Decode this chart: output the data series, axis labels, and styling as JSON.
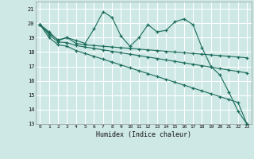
{
  "xlabel": "Humidex (Indice chaleur)",
  "background_color": "#cde8e5",
  "grid_color": "#ffffff",
  "line_color": "#1a6b5a",
  "x_values": [
    0,
    1,
    2,
    3,
    4,
    5,
    6,
    7,
    8,
    9,
    10,
    11,
    12,
    13,
    14,
    15,
    16,
    17,
    18,
    19,
    20,
    21,
    22,
    23
  ],
  "series1": [
    19.9,
    19.4,
    18.8,
    19.0,
    18.8,
    18.6,
    19.6,
    20.8,
    20.4,
    19.1,
    18.4,
    19.0,
    19.9,
    19.4,
    19.5,
    20.1,
    20.3,
    19.9,
    18.3,
    17.0,
    16.4,
    15.2,
    13.9,
    13.0
  ],
  "series2": [
    19.9,
    19.3,
    18.85,
    19.0,
    18.6,
    18.5,
    18.45,
    18.4,
    18.35,
    18.3,
    18.25,
    18.2,
    18.15,
    18.1,
    18.05,
    18.0,
    17.95,
    17.9,
    17.85,
    17.8,
    17.75,
    17.7,
    17.65,
    17.6
  ],
  "series3": [
    19.9,
    19.2,
    18.7,
    18.65,
    18.45,
    18.35,
    18.25,
    18.15,
    18.05,
    17.95,
    17.85,
    17.75,
    17.65,
    17.55,
    17.45,
    17.35,
    17.25,
    17.15,
    17.05,
    16.95,
    16.85,
    16.75,
    16.65,
    16.55
  ],
  "series4": [
    19.9,
    19.0,
    18.5,
    18.4,
    18.1,
    17.9,
    17.7,
    17.5,
    17.3,
    17.1,
    16.9,
    16.7,
    16.5,
    16.3,
    16.1,
    15.9,
    15.7,
    15.5,
    15.3,
    15.1,
    14.9,
    14.7,
    14.5,
    13.0
  ],
  "ylim": [
    13,
    21.5
  ],
  "yticks": [
    13,
    14,
    15,
    16,
    17,
    18,
    19,
    20,
    21
  ],
  "xticks": [
    0,
    1,
    2,
    3,
    4,
    5,
    6,
    7,
    8,
    9,
    10,
    11,
    12,
    13,
    14,
    15,
    16,
    17,
    18,
    19,
    20,
    21,
    22,
    23
  ],
  "xlim": [
    -0.5,
    23.5
  ]
}
